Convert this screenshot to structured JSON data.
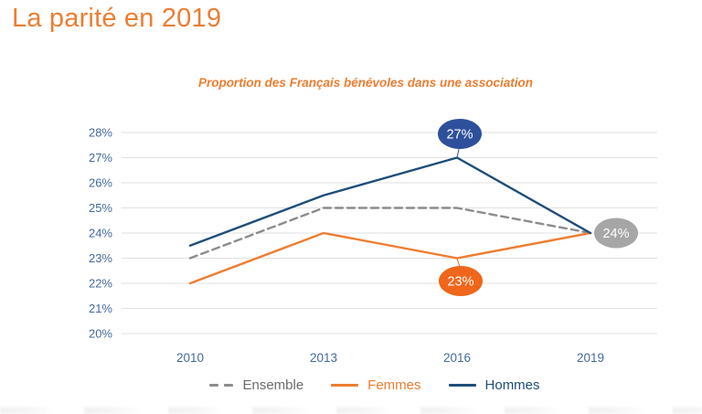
{
  "page": {
    "title": "La parité en 2019",
    "subtitle": "Proportion des Français bénévoles dans une association"
  },
  "colors": {
    "accent_orange": "#ED7D31",
    "navy": "#1F4E79",
    "axis_label_blue": "#44699E",
    "gridline": "#E1E1E1",
    "ensemble_gray": "#8C8C8C",
    "legend_text_gray": "#6B6B6B",
    "bubble_blue": "#2E509C",
    "bubble_orange": "#F0661A",
    "bubble_gray": "#A6A6A6",
    "bubble_text": "#FFFFFF"
  },
  "chart_data": {
    "type": "line",
    "title": "Proportion des Français bénévoles dans une association",
    "categories": [
      "2010",
      "2013",
      "2016",
      "2019"
    ],
    "series": [
      {
        "name": "Ensemble",
        "values": [
          23,
          25,
          25,
          24
        ],
        "color": "#8C8C8C",
        "style": "dashed"
      },
      {
        "name": "Femmes",
        "values": [
          22,
          24,
          23,
          24
        ],
        "color": "#ED7D31",
        "style": "solid"
      },
      {
        "name": "Hommes",
        "values": [
          23.5,
          25.5,
          27,
          24
        ],
        "color": "#1F4E79",
        "style": "solid"
      }
    ],
    "ylim": [
      20,
      28
    ],
    "yticks": [
      "28%",
      "27%",
      "26%",
      "25%",
      "24%",
      "23%",
      "22%",
      "21%",
      "20%"
    ],
    "ytick_format": "percent",
    "grid": true,
    "legend_position": "bottom",
    "annotations": [
      {
        "series": "Hommes",
        "category": "2016",
        "label": "27%",
        "fill": "#2E509C",
        "position": "above"
      },
      {
        "series": "Femmes",
        "category": "2016",
        "label": "23%",
        "fill": "#F0661A",
        "position": "below"
      },
      {
        "series": "Ensemble",
        "category": "2019",
        "label": "24%",
        "fill": "#A6A6A6",
        "position": "right"
      }
    ]
  }
}
